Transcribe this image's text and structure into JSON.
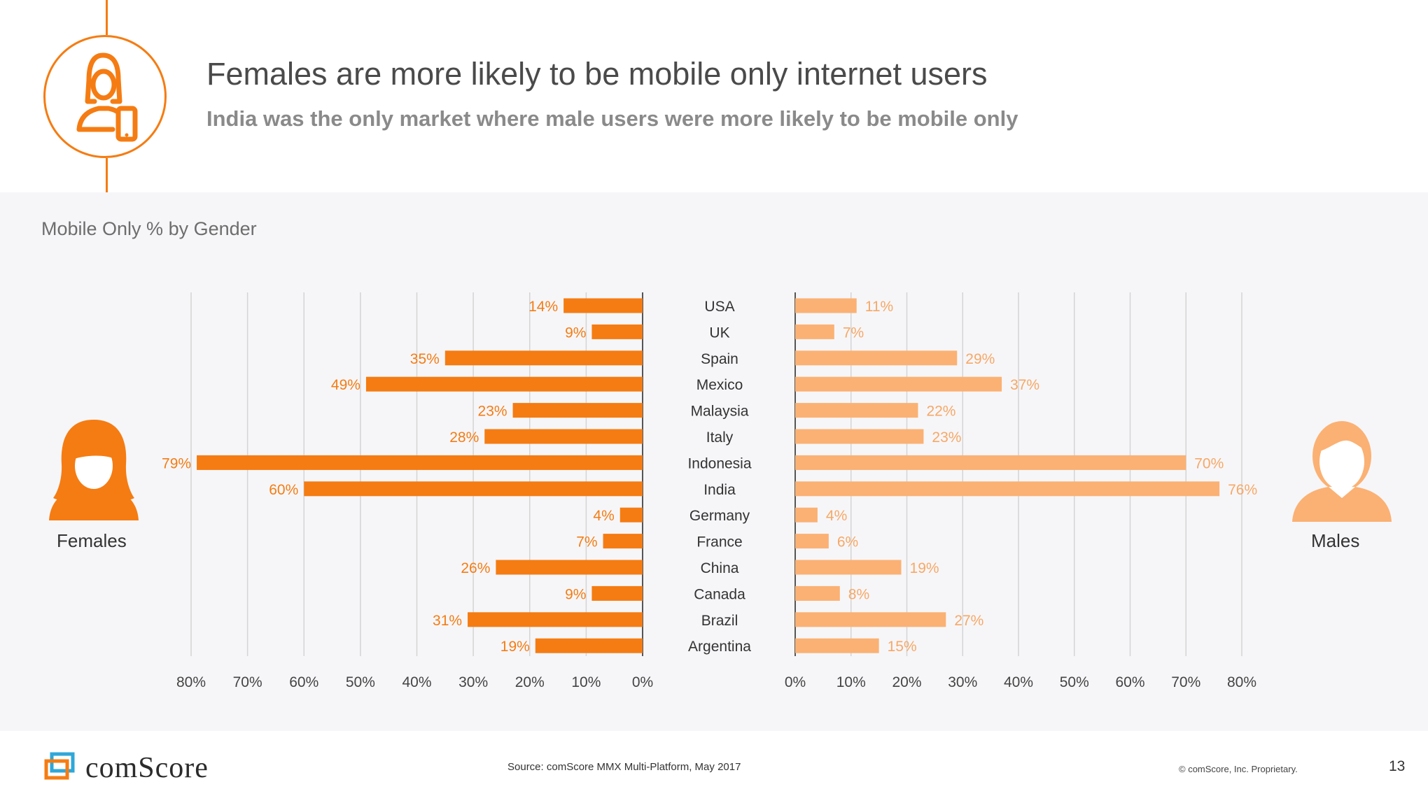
{
  "header": {
    "title": "Females are more likely to be mobile only internet users",
    "subtitle": "India was the only market where male users were more likely to be mobile only"
  },
  "section": {
    "label": "Mobile Only % by Gender"
  },
  "legend": {
    "females": "Females",
    "males": "Males"
  },
  "colors": {
    "accent": "#f57c12",
    "female_bar": "#f57c12",
    "male_bar": "#fbb173",
    "male_label": "#f7a865",
    "grid": "#d4d4d4"
  },
  "chart_data": {
    "type": "bar",
    "title": "Mobile Only % by Gender",
    "categories": [
      "USA",
      "UK",
      "Spain",
      "Mexico",
      "Malaysia",
      "Italy",
      "Indonesia",
      "India",
      "Germany",
      "France",
      "China",
      "Canada",
      "Brazil",
      "Argentina"
    ],
    "series": [
      {
        "name": "Females",
        "values": [
          14,
          9,
          35,
          49,
          23,
          28,
          79,
          60,
          4,
          7,
          26,
          9,
          31,
          19
        ]
      },
      {
        "name": "Males",
        "values": [
          11,
          7,
          29,
          37,
          22,
          23,
          70,
          76,
          4,
          6,
          19,
          8,
          27,
          15
        ]
      }
    ],
    "xlim": [
      0,
      80
    ],
    "ticks": [
      0,
      10,
      20,
      30,
      40,
      50,
      60,
      70,
      80
    ],
    "tick_suffix": "%",
    "value_suffix": "%"
  },
  "footer": {
    "source": "Source: comScore MMX Multi-Platform, May 2017",
    "copyright": "© comScore, Inc. Proprietary.",
    "page_number": "13",
    "logo_text": "comScore"
  }
}
